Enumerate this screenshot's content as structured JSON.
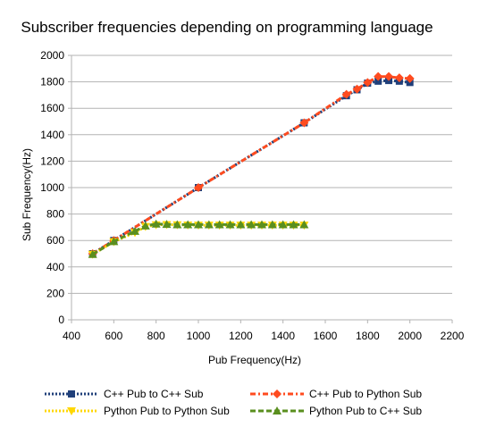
{
  "chart_data": {
    "type": "line",
    "title": "Subscriber frequencies depending on programming language",
    "xlabel": "Pub Frequency(Hz)",
    "ylabel": "Sub Frequency(Hz)",
    "xlim": [
      400,
      2200
    ],
    "ylim": [
      0,
      2000
    ],
    "xticks": [
      400,
      600,
      800,
      1000,
      1200,
      1400,
      1600,
      1800,
      2000,
      2200
    ],
    "yticks": [
      0,
      200,
      400,
      600,
      800,
      1000,
      1200,
      1400,
      1600,
      1800,
      2000
    ],
    "grid": "horizontal",
    "legend_position": "bottom",
    "series": [
      {
        "name": "C++ Pub to C++ Sub",
        "color": "#1f3f7a",
        "marker": "square",
        "dash": "dotted",
        "points": [
          [
            500,
            500
          ],
          [
            600,
            600
          ],
          [
            1000,
            1000
          ],
          [
            1500,
            1490
          ],
          [
            1700,
            1695
          ],
          [
            1750,
            1740
          ],
          [
            1800,
            1790
          ],
          [
            1850,
            1805
          ],
          [
            1900,
            1810
          ],
          [
            1950,
            1805
          ],
          [
            2000,
            1795
          ]
        ]
      },
      {
        "name": "C++ Pub to Python Sub",
        "color": "#ff4b1f",
        "marker": "diamond",
        "dash": "dashdot",
        "points": [
          [
            500,
            500
          ],
          [
            600,
            600
          ],
          [
            1000,
            1000
          ],
          [
            1500,
            1490
          ],
          [
            1700,
            1705
          ],
          [
            1750,
            1745
          ],
          [
            1800,
            1795
          ],
          [
            1850,
            1840
          ],
          [
            1900,
            1840
          ],
          [
            1950,
            1830
          ],
          [
            2000,
            1825
          ]
        ]
      },
      {
        "name": "Python Pub to Python Sub",
        "color": "#ffd700",
        "marker": "triangle-down",
        "dash": "dotted",
        "points": [
          [
            500,
            495
          ],
          [
            600,
            590
          ],
          [
            700,
            660
          ],
          [
            750,
            705
          ],
          [
            800,
            718
          ],
          [
            850,
            720
          ],
          [
            900,
            718
          ],
          [
            950,
            716
          ],
          [
            1000,
            715
          ],
          [
            1050,
            715
          ],
          [
            1100,
            715
          ],
          [
            1150,
            715
          ],
          [
            1200,
            715
          ],
          [
            1250,
            715
          ],
          [
            1300,
            715
          ],
          [
            1350,
            715
          ],
          [
            1400,
            715
          ],
          [
            1450,
            715
          ],
          [
            1500,
            715
          ]
        ]
      },
      {
        "name": "Python Pub to C++ Sub",
        "color": "#5a8f1f",
        "marker": "triangle",
        "dash": "dashed",
        "points": [
          [
            500,
            495
          ],
          [
            600,
            592
          ],
          [
            700,
            670
          ],
          [
            750,
            710
          ],
          [
            800,
            725
          ],
          [
            850,
            722
          ],
          [
            900,
            720
          ],
          [
            950,
            720
          ],
          [
            1000,
            720
          ],
          [
            1050,
            720
          ],
          [
            1100,
            720
          ],
          [
            1150,
            720
          ],
          [
            1200,
            720
          ],
          [
            1250,
            720
          ],
          [
            1300,
            720
          ],
          [
            1350,
            720
          ],
          [
            1400,
            720
          ],
          [
            1450,
            720
          ],
          [
            1500,
            720
          ]
        ]
      }
    ]
  }
}
